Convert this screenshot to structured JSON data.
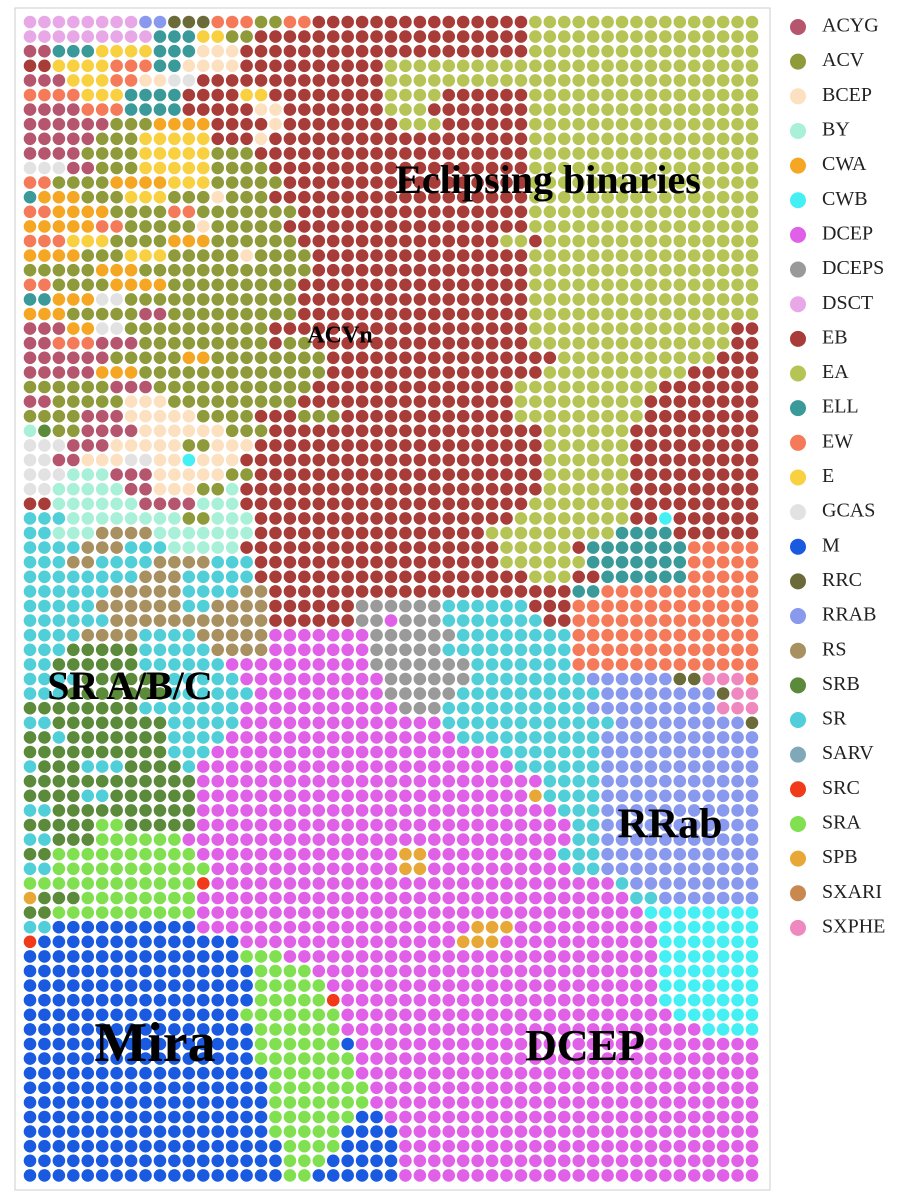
{
  "chart_data": {
    "type": "som",
    "series": [
      {
        "name": "ACYG",
        "color": "#b5566e"
      },
      {
        "name": "ACV",
        "color": "#8f9a3a"
      },
      {
        "name": "BCEP",
        "color": "#fce0c0"
      },
      {
        "name": "BY",
        "color": "#a8f0d8"
      },
      {
        "name": "CWA",
        "color": "#f5a623"
      },
      {
        "name": "CWB",
        "color": "#45f0f5"
      },
      {
        "name": "DCEP",
        "color": "#e060e8"
      },
      {
        "name": "DCEPS",
        "color": "#9a9a9a"
      },
      {
        "name": "DSCT",
        "color": "#e8a8e8"
      },
      {
        "name": "EB",
        "color": "#a83c38"
      },
      {
        "name": "EA",
        "color": "#b5c455"
      },
      {
        "name": "ELL",
        "color": "#3a9999"
      },
      {
        "name": "EW",
        "color": "#f57a5a"
      },
      {
        "name": "E",
        "color": "#f8d040"
      },
      {
        "name": "GCAS",
        "color": "#e2e2e2"
      },
      {
        "name": "M",
        "color": "#1a5ae0"
      },
      {
        "name": "RRC",
        "color": "#6b6b3a"
      },
      {
        "name": "RRAB",
        "color": "#8899ee"
      },
      {
        "name": "RS",
        "color": "#a89060"
      },
      {
        "name": "SRB",
        "color": "#5a8a3a"
      },
      {
        "name": "SR",
        "color": "#50cfd8"
      },
      {
        "name": "SARV",
        "color": "#80a8b8"
      },
      {
        "name": "SRC",
        "color": "#f03a1a"
      },
      {
        "name": "SRA",
        "color": "#80e050"
      },
      {
        "name": "SPB",
        "color": "#e8a838"
      },
      {
        "name": "SXARI",
        "color": "#c88850"
      },
      {
        "name": "SXPHE",
        "color": "#f088c0"
      }
    ],
    "annotations": [
      "Eclipsing binaries",
      "ACVn",
      "SR A/B/C",
      "RRab",
      "Mira",
      "DCEP"
    ],
    "rows": [
      "8*8 17*2 16*3 12*3 1*2 12*2 9*15 10*16",
      "8*9 11*3 13*2 1*2 9*19 10*16",
      "0*2 11*3 13*4 11*3 2*3 9*20 10*16",
      "9*2 13*4 12*3 11*2 2*4 9*10 10*26",
      "0*3 13*3 12*2 2*2 14*2 9*13 10*26",
      "12*4 13*3 11*4 9*4 13*2 9*8 10*4 9*6 10*16",
      "0*4 12*3 11*4 9*5 2*2 9*7 10*3 9*7 10*16",
      "0*6 1*3 4*4 9*4 2*1 9*8 10*3 9*6 10*16",
      "0*5 1*3 13*5 9*3 2*1 9*18 10*16",
      "0*4 1*4 13*5 1*3 9*19 10*16",
      "14*3 0*2 1*3 13*5 1*4 9*18 10*16",
      "12*2 1*4 4*4 13*3 1*5 9*17 10*16",
      "11*1 4*3 1*3 13*3 1*3 2*1 1*3 9*18 10*16",
      "12*2 4*4 1*4 12*2 1*7 9*16 10*16",
      "4*5 12*2 1*5 2*1 1*5 9*17 10*16",
      "12*3 13*3 1*4 4*3 1*6 9*14 10*2 9*1 10*15",
      "4*4 1*3 13*3 1*5 2*1 1*4 9*15 10*16",
      "1*5 4*3 1*3 1*4 1*4 1*1 9*15 10*16",
      "12*2 1*4 4*4 1*9 9*16 10*16",
      "11*2 4*3 14*2 1*4 1*8 9*16 10*16",
      "4*3 1*5 0*2 1*9 9*16 10*16",
      "0*3 4*2 14*2 1*10 9*18 10*14 9*2",
      "0*2 12*3 0*3 1*9 9*1 1*2 9*15 10*14 9*2",
      "0*6 1*5 4*2 1*8 9*16 10*11 9*3",
      "0*5 4*3 1*4 1*9 9*15 10*10 9*5",
      "1*6 0*3 1*5 1*6 9*14 10*10 9*7",
      "0*2 1*5 2*3 1*4 1*5 9*15 10*9 9*8",
      "1*4 0*3 2*5 1*4 9*3 1*3 9*12 10*9 9*8",
      "3*1 19*1 1*2 0*4 2*6 1*3 9*19 10*6 9*9",
      "14*3 0*3 2*5 1*2 2*3 9*20 10*6 9*9",
      "14*2 0*2 2*3 14*2 2*2 5*1 2*3 9*21 10*6 9*9",
      "14*3 3*3 0*3 2*5 1*2 9*20 10*6 9*9",
      "14*2 3*5 0*2 2*3 1*2 3*1 9*21 10*6 9*9",
      "9*2 3*6 0*4 3*3 9*20 10*7 9*9",
      "20*3 3*8 1*2 3*3 9*18 10*8 9*2 5*1 9*6",
      "20*2 3*3 18*4 3*7 9*16 10*9 11*4 9*6",
      "20*4 18*3 20*3 3*5 9*18 10*5 9*1 11*7 12*5",
      "20*3 18*2 20*4 18*4 20*3 9*17 10*6 11*7 12*5",
      "20*8 18*3 20*5 9*19 10*3 9*2 11*6 12*5",
      "20*6 18*5 20*4 18*2 9*19 9*2 11*2 12*11",
      "20*5 18*6 20*2 18*4 9*6 7*6 20*6 9*3 12*13",
      "20*6 18*7 18*4 9*6 7*2 6*1 7*3 20*7 9*2 12*13",
      "20*4 18*4 20*4 18*5 6*7 7*6 20*8 12*13",
      "20*3 19*5 20*5 18*4 6*7 7*5 20*9 12*13",
      "20*2 19*6 20*6 6*10 7*7 20*7 12*13",
      "20*4 19*6 20*5 6*10 7*6 20*8 17*6 16*2 26*3 12*1",
      "20*3 19*7 20*6 6*9 7*5 20*10 17*8 16*1 26*2",
      "19*8 20*7 6*11 7*3 20*10 17*9 26*3",
      "20*2 19*8 20*5 6*14 20*12 17*9 16*1",
      "19*2 20*1 19*7 20*4 6*16 20*10 17*11",
      "19*10 20*3 6*20 20*7 17*11",
      "20*1 19*3 20*3 19*4 20*1 6*22 20*6 17*11",
      "19*12 6*24 20*4 17*11",
      "19*4 20*2 19*6 6*23 24*1 20*4 17*11",
      "20*2 19*10 6*25 20*3 17*11",
      "19*5 23*2 19*5 6*26 20*2 17*11",
      "20*2 19*3 23*6 6*27 20*2 17*11",
      "19*2 23*10 6*14 24*2 6*9 20*3 17*11",
      "20*2 23*11 6*13 24*2 6*10 20*2 17*11",
      "23*12 22*1 6*28 20*1 17*9",
      "24*1 19*3 23*8 6*30 20*2 17*7",
      "19*2 23*10 6*31 5*8",
      "20*2 15*10 6*19 24*3 6*10 5*7",
      "22*1 15*14 6*15 24*3 6*11 5*7",
      "15*15 23*3 6*26 5*7",
      "15*16 23*4 6*24 5*7",
      "15*16 23*5 6*23 5*7",
      "15*16 23*5 22*1 6*22 5*7",
      "15*15 23*7 6*23 5*6",
      "15*16 23*6 6*25 5*4",
      "15*16 23*6 15*1 6*28",
      "15*16 23*7 6*28",
      "15*17 23*6 6*28",
      "15*17 23*7 6*27",
      "15*17 23*7 6*27",
      "15*17 23*6 15*2 6*26",
      "15*17 23*5 15*4 6*25",
      "15*18 23*4 15*4 6*25",
      "15*18 23*3 15*5 6*25",
      "15*18 23*2 15*6 6*25"
    ]
  }
}
